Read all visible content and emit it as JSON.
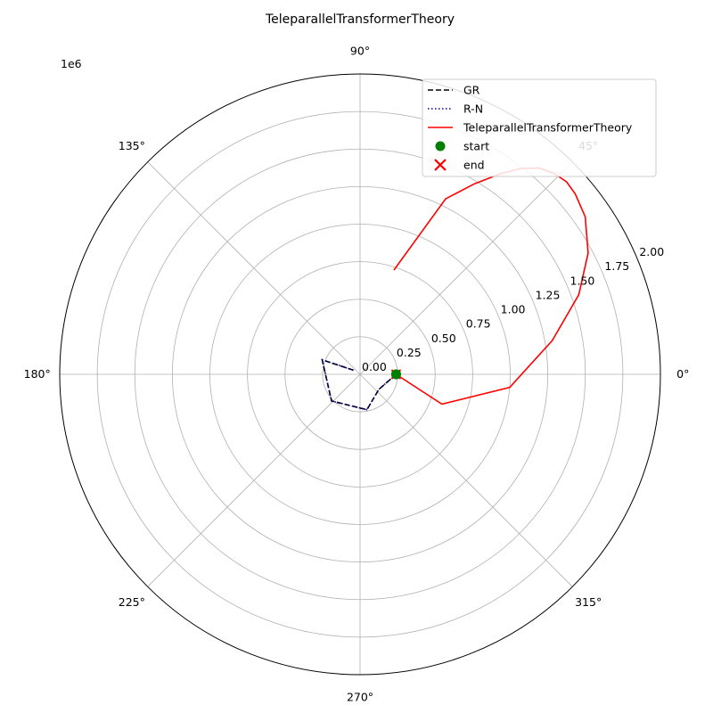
{
  "chart_data": {
    "type": "line",
    "projection": "polar",
    "title": "TeleparallelTransformerTheory",
    "radial_offset_label": "1e6",
    "rlim": [
      0,
      2.0
    ],
    "radial_ticks": [
      0.0,
      0.25,
      0.5,
      0.75,
      1.0,
      1.25,
      1.5,
      1.75,
      2.0
    ],
    "radial_tick_labels": [
      "0.00",
      "0.25",
      "0.50",
      "0.75",
      "1.00",
      "1.25",
      "1.50",
      "1.75",
      "2.00"
    ],
    "angular_ticks_deg": [
      0,
      45,
      90,
      135,
      180,
      225,
      270,
      315
    ],
    "angular_tick_labels": [
      "0°",
      "45°",
      "90°",
      "135°",
      "180°",
      "225°",
      "270°",
      "315°"
    ],
    "grid": true,
    "legend_position": "top-right",
    "colors": {
      "gr": "#000000",
      "rn": "#00008b",
      "teleparallel": "#ff0000",
      "start": "#008000",
      "end": "#ff0000"
    },
    "series": [
      {
        "name": "GR",
        "style": "dashed",
        "color": "#000000",
        "theta_deg": [
          0,
          321,
          281,
          223,
          159,
          148
        ],
        "r": [
          0.24,
          0.16,
          0.24,
          0.26,
          0.27,
          0.05
        ]
      },
      {
        "name": "R-N",
        "style": "dotted",
        "color": "#00008b",
        "theta_deg": [
          0,
          321,
          281,
          223,
          159,
          148
        ],
        "r": [
          0.24,
          0.16,
          0.24,
          0.26,
          0.27,
          0.05
        ]
      },
      {
        "name": "TeleparallelTransformerTheory",
        "style": "solid",
        "color": "#ff0000",
        "theta_deg": [
          0,
          -20,
          -5,
          10,
          20,
          28,
          35,
          40,
          43,
          46,
          49,
          52,
          55,
          59,
          64,
          72
        ],
        "r": [
          0.24,
          0.58,
          1.0,
          1.3,
          1.55,
          1.72,
          1.83,
          1.87,
          1.88,
          1.86,
          1.82,
          1.74,
          1.63,
          1.48,
          1.3,
          0.73
        ]
      }
    ],
    "markers": [
      {
        "name": "start",
        "marker": "circle",
        "color": "#008000",
        "theta_deg": 0,
        "r": 0.24
      },
      {
        "name": "end",
        "marker": "x",
        "color": "#ff0000",
        "theta_deg": 0,
        "r": 0.24
      }
    ]
  }
}
